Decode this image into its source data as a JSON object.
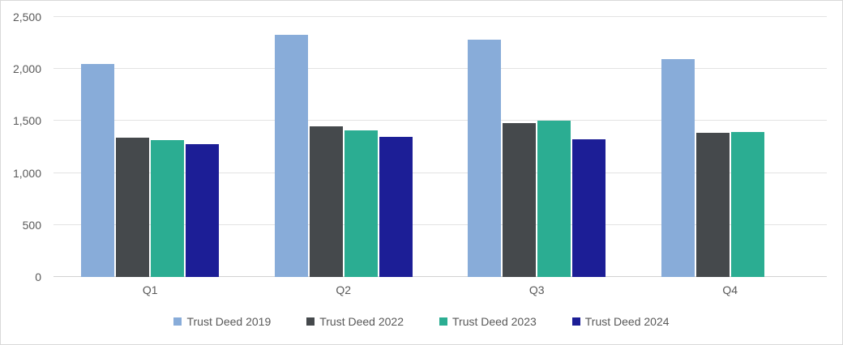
{
  "chart_data": {
    "type": "bar",
    "title": "",
    "categories": [
      "Q1",
      "Q2",
      "Q3",
      "Q4"
    ],
    "series": [
      {
        "name": "Trust Deed 2019",
        "color": "#88ACD9",
        "values": [
          2045,
          2330,
          2285,
          2095
        ]
      },
      {
        "name": "Trust Deed 2022",
        "color": "#45494C",
        "values": [
          1340,
          1445,
          1480,
          1385
        ]
      },
      {
        "name": "Trust Deed 2023",
        "color": "#2BAD92",
        "values": [
          1315,
          1410,
          1505,
          1395
        ]
      },
      {
        "name": "Trust Deed 2024",
        "color": "#1C1E96",
        "values": [
          1280,
          1345,
          1325,
          null
        ]
      }
    ],
    "ylim": [
      0,
      2500
    ],
    "yticks": [
      {
        "value": 0,
        "label": "0"
      },
      {
        "value": 500,
        "label": "500"
      },
      {
        "value": 1000,
        "label": "1,000"
      },
      {
        "value": 1500,
        "label": "1,500"
      },
      {
        "value": 2000,
        "label": "2,000"
      },
      {
        "value": 2500,
        "label": "2,500"
      }
    ],
    "grid": true,
    "legend_position": "bottom",
    "colors": {
      "axis_text": "#595959",
      "gridline": "#E3E3E3",
      "axis_line": "#D2D2D2",
      "border": "#D9D9D9",
      "background": "#FFFFFF"
    }
  }
}
